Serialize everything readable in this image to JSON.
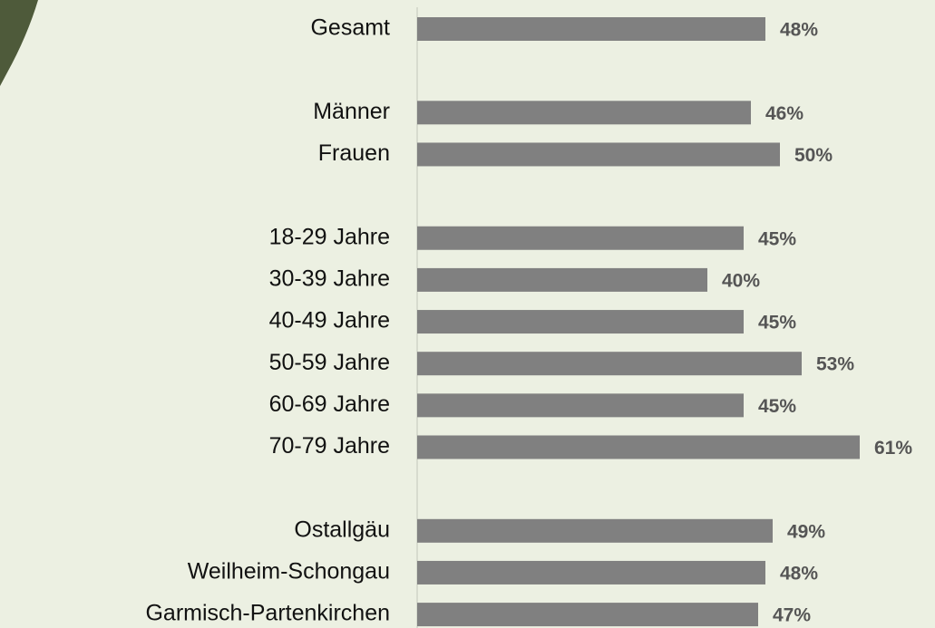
{
  "chart_data": {
    "type": "bar",
    "orientation": "horizontal",
    "categories": [
      "Gesamt",
      null,
      "Männer",
      "Frauen",
      null,
      "18-29 Jahre",
      "30-39 Jahre",
      "40-49 Jahre",
      "50-59 Jahre",
      "60-69 Jahre",
      "70-79 Jahre",
      null,
      "Ostallgäu",
      "Weilheim-Schongau",
      "Garmisch-Partenkirchen"
    ],
    "values": [
      48,
      null,
      46,
      50,
      null,
      45,
      40,
      45,
      53,
      45,
      61,
      null,
      49,
      48,
      47
    ],
    "value_labels": [
      "48%",
      null,
      "46%",
      "50%",
      null,
      "45%",
      "40%",
      "45%",
      "53%",
      "45%",
      "61%",
      null,
      "49%",
      "48%",
      "47%"
    ],
    "color": "#808080"
  }
}
